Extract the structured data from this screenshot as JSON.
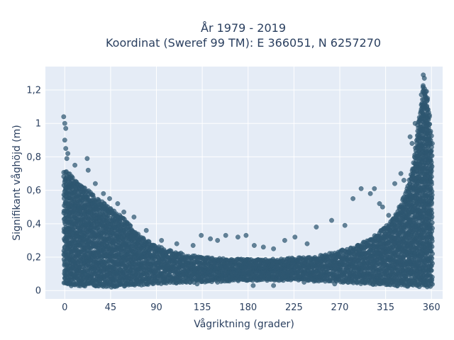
{
  "chart_data": {
    "type": "scatter",
    "title": "År 1979 - 2019",
    "subtitle": "Koordinat (Sweref 99 TM): E 366051, N 6257270",
    "xlabel": "Vågriktning (grader)",
    "ylabel": "Signifikant våghöjd (m)",
    "xlim": [
      -19,
      371
    ],
    "ylim": [
      -0.05,
      1.34
    ],
    "xticks": [
      0,
      45,
      90,
      135,
      180,
      225,
      270,
      315,
      360
    ],
    "xtick_labels": [
      "0",
      "45",
      "90",
      "135",
      "180",
      "225",
      "270",
      "315",
      "360"
    ],
    "yticks": [
      0,
      0.2,
      0.4,
      0.6,
      0.8,
      1,
      1.2
    ],
    "ytick_labels": [
      "0",
      "0,2",
      "0,4",
      "0,6",
      "0,8",
      "1",
      "1,2"
    ],
    "grid": true,
    "marker_color": "#2e5670",
    "background_color": "#e5ecf6",
    "band_upper_envelope": [
      [
        0,
        0.72
      ],
      [
        5,
        0.7
      ],
      [
        10,
        0.66
      ],
      [
        20,
        0.62
      ],
      [
        30,
        0.56
      ],
      [
        45,
        0.5
      ],
      [
        60,
        0.42
      ],
      [
        75,
        0.33
      ],
      [
        90,
        0.27
      ],
      [
        105,
        0.24
      ],
      [
        120,
        0.22
      ],
      [
        135,
        0.2
      ],
      [
        150,
        0.2
      ],
      [
        165,
        0.19
      ],
      [
        180,
        0.19
      ],
      [
        195,
        0.19
      ],
      [
        210,
        0.19
      ],
      [
        225,
        0.2
      ],
      [
        240,
        0.2
      ],
      [
        255,
        0.22
      ],
      [
        270,
        0.24
      ],
      [
        285,
        0.27
      ],
      [
        300,
        0.31
      ],
      [
        310,
        0.36
      ],
      [
        320,
        0.42
      ],
      [
        330,
        0.52
      ],
      [
        338,
        0.65
      ],
      [
        343,
        0.8
      ],
      [
        347,
        1.0
      ],
      [
        350,
        1.15
      ],
      [
        352,
        1.25
      ],
      [
        355,
        1.2
      ],
      [
        358,
        1.05
      ],
      [
        360,
        0.9
      ]
    ],
    "band_lower_envelope": [
      [
        0,
        0.03
      ],
      [
        45,
        0.02
      ],
      [
        90,
        0.04
      ],
      [
        135,
        0.05
      ],
      [
        180,
        0.06
      ],
      [
        225,
        0.06
      ],
      [
        270,
        0.05
      ],
      [
        315,
        0.03
      ],
      [
        360,
        0.02
      ]
    ],
    "outlier_points": [
      [
        -1,
        1.04
      ],
      [
        0,
        1.0
      ],
      [
        1,
        0.97
      ],
      [
        0,
        0.9
      ],
      [
        1,
        0.85
      ],
      [
        3,
        0.82
      ],
      [
        2,
        0.79
      ],
      [
        10,
        0.75
      ],
      [
        22,
        0.79
      ],
      [
        23,
        0.72
      ],
      [
        30,
        0.64
      ],
      [
        38,
        0.58
      ],
      [
        44,
        0.55
      ],
      [
        52,
        0.52
      ],
      [
        58,
        0.47
      ],
      [
        68,
        0.44
      ],
      [
        80,
        0.36
      ],
      [
        95,
        0.3
      ],
      [
        110,
        0.28
      ],
      [
        126,
        0.27
      ],
      [
        134,
        0.33
      ],
      [
        143,
        0.31
      ],
      [
        150,
        0.3
      ],
      [
        158,
        0.33
      ],
      [
        170,
        0.32
      ],
      [
        178,
        0.33
      ],
      [
        186,
        0.27
      ],
      [
        195,
        0.26
      ],
      [
        205,
        0.25
      ],
      [
        216,
        0.3
      ],
      [
        226,
        0.32
      ],
      [
        238,
        0.28
      ],
      [
        247,
        0.38
      ],
      [
        262,
        0.42
      ],
      [
        275,
        0.39
      ],
      [
        283,
        0.55
      ],
      [
        291,
        0.61
      ],
      [
        300,
        0.58
      ],
      [
        304,
        0.61
      ],
      [
        309,
        0.52
      ],
      [
        312,
        0.5
      ],
      [
        318,
        0.45
      ],
      [
        324,
        0.64
      ],
      [
        330,
        0.7
      ],
      [
        333,
        0.66
      ],
      [
        339,
        0.92
      ],
      [
        341,
        0.88
      ],
      [
        344,
        1.0
      ],
      [
        352,
        1.29
      ],
      [
        353,
        1.27
      ],
      [
        356,
        1.14
      ],
      [
        358,
        1.04
      ],
      [
        130,
        0.04
      ],
      [
        150,
        0.05
      ],
      [
        185,
        0.03
      ],
      [
        205,
        0.03
      ],
      [
        235,
        0.05
      ],
      [
        265,
        0.04
      ],
      [
        295,
        0.05
      ]
    ]
  }
}
